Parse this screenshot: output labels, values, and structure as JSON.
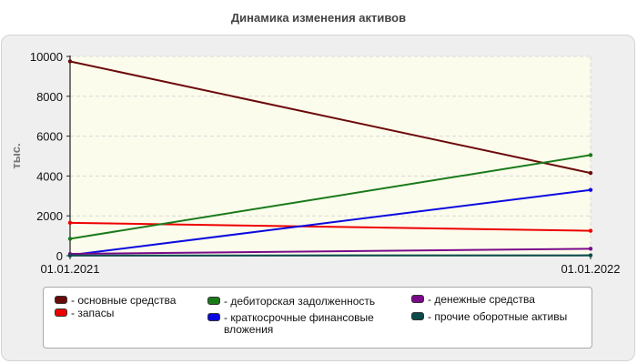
{
  "title": "Динамика изменения активов",
  "chart_data": {
    "type": "line",
    "title": "Динамика изменения активов",
    "ylabel": "тыс.",
    "xlabel": "",
    "x": [
      "01.01.2021",
      "01.01.2022"
    ],
    "ylim": [
      0,
      10000
    ],
    "yticks": [
      0,
      2000,
      4000,
      6000,
      8000,
      10000
    ],
    "grid": true,
    "legend_position": "bottom",
    "series": [
      {
        "name": "основные средства",
        "values": [
          9750,
          4150
        ],
        "color": "#6b0a0a"
      },
      {
        "name": "запасы",
        "values": [
          1650,
          1250
        ],
        "color": "#ee0000"
      },
      {
        "name": "дебиторская задолженность",
        "values": [
          850,
          5050
        ],
        "color": "#1a7a1a"
      },
      {
        "name": "краткосрочные финансовые вложения",
        "values": [
          30,
          3300
        ],
        "color": "#0a0ae0"
      },
      {
        "name": "денежные средства",
        "values": [
          90,
          350
        ],
        "color": "#7a0a8a"
      },
      {
        "name": "прочие оборотные активы",
        "values": [
          10,
          20
        ],
        "color": "#0a4a4a"
      }
    ]
  }
}
